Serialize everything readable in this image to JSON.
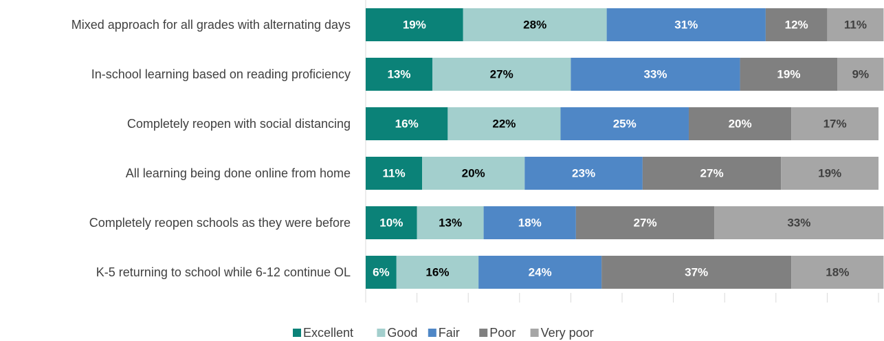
{
  "chart_data": {
    "type": "stacked_barh",
    "categories": [
      "Mixed approach for all grades with alternating days",
      "In-school learning based on reading proficiency",
      "Completely reopen with social distancing",
      "All learning being done online from home",
      "Completely reopen schools as they were before",
      "K-5 returning to school while 6-12 continue OL"
    ],
    "series": [
      {
        "name": "Excellent",
        "color": "#0b8278",
        "label_color": "#ffffff",
        "values": [
          19,
          13,
          16,
          11,
          10,
          6
        ],
        "value_labels": [
          "19%",
          "13%",
          "16%",
          "11%",
          "10%",
          "6%"
        ]
      },
      {
        "name": "Good",
        "color": "#a3cfcd",
        "label_color": "#000000",
        "values": [
          28,
          27,
          22,
          20,
          13,
          16
        ],
        "value_labels": [
          "28%",
          "27%",
          "22%",
          "20%",
          "13%",
          "16%"
        ]
      },
      {
        "name": "Fair",
        "color": "#4f87c6",
        "label_color": "#ffffff",
        "values": [
          31,
          33,
          25,
          23,
          18,
          24
        ],
        "value_labels": [
          "31%",
          "33%",
          "25%",
          "23%",
          "18%",
          "24%"
        ]
      },
      {
        "name": "Poor",
        "color": "#808080",
        "label_color": "#ffffff",
        "values": [
          12,
          19,
          20,
          27,
          27,
          37
        ],
        "value_labels": [
          "12%",
          "19%",
          "20%",
          "27%",
          "27%",
          "37%"
        ]
      },
      {
        "name": "Very poor",
        "color": "#a6a6a6",
        "label_color": "#404040",
        "values": [
          11,
          9,
          17,
          19,
          33,
          18
        ],
        "value_labels": [
          "11%",
          "9%",
          "17%",
          "19%",
          "33%",
          "18%"
        ]
      }
    ],
    "xlim": [
      0,
      100
    ],
    "xticks": [
      0,
      10,
      20,
      30,
      40,
      50,
      60,
      70,
      80,
      90,
      100
    ],
    "legend": "bottom"
  }
}
